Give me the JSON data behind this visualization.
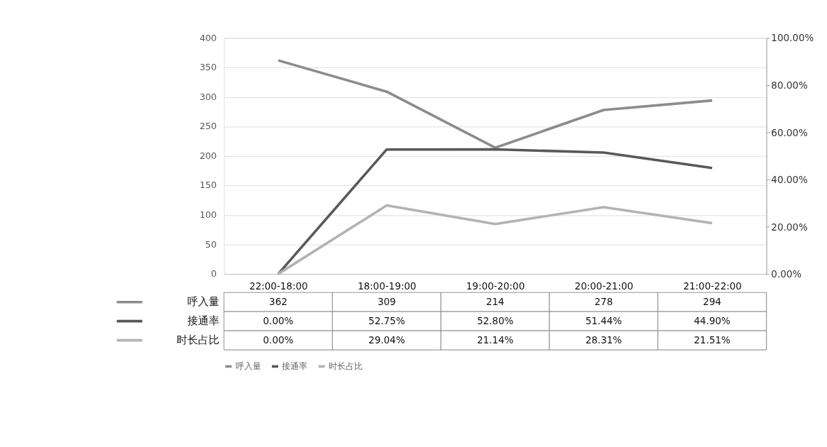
{
  "chart_data": {
    "type": "line",
    "categories": [
      "22:00-18:00",
      "18:00-19:00",
      "19:00-20:00",
      "20:00-21:00",
      "21:00-22:00"
    ],
    "series": [
      {
        "name": "呼入量",
        "color": "#8c8c8c",
        "values": [
          362,
          309,
          214,
          278,
          294
        ],
        "value_labels": [
          "362",
          "309",
          "214",
          "278",
          "294"
        ]
      },
      {
        "name": "接通率",
        "color": "#595959",
        "axis": "y2",
        "values": [
          0,
          52.75,
          52.8,
          51.44,
          44.9
        ],
        "value_labels": [
          "0.00%",
          "52.75%",
          "52.80%",
          "51.44%",
          "44.90%"
        ]
      },
      {
        "name": "时长占比",
        "color": "#b3b3b3",
        "axis": "y2",
        "values": [
          0,
          29.04,
          21.14,
          28.31,
          21.51
        ],
        "value_labels": [
          "0.00%",
          "29.04%",
          "21.14%",
          "28.31%",
          "21.51%"
        ]
      }
    ],
    "ylim": [
      0,
      400
    ],
    "yticks": [
      0,
      50,
      100,
      150,
      200,
      250,
      300,
      350,
      400
    ],
    "y2lim": [
      0,
      100
    ],
    "y2ticks": [
      {
        "value": 0,
        "label": "0.00%"
      },
      {
        "value": 20,
        "label": "20.00%"
      },
      {
        "value": 40,
        "label": "40.00%"
      },
      {
        "value": 60,
        "label": "60.00%"
      },
      {
        "value": 80,
        "label": "80.00%"
      },
      {
        "value": 100,
        "label": "100.00%"
      }
    ],
    "grid": "y",
    "legend": "bottom",
    "line_style": "solid",
    "marker": "none"
  }
}
